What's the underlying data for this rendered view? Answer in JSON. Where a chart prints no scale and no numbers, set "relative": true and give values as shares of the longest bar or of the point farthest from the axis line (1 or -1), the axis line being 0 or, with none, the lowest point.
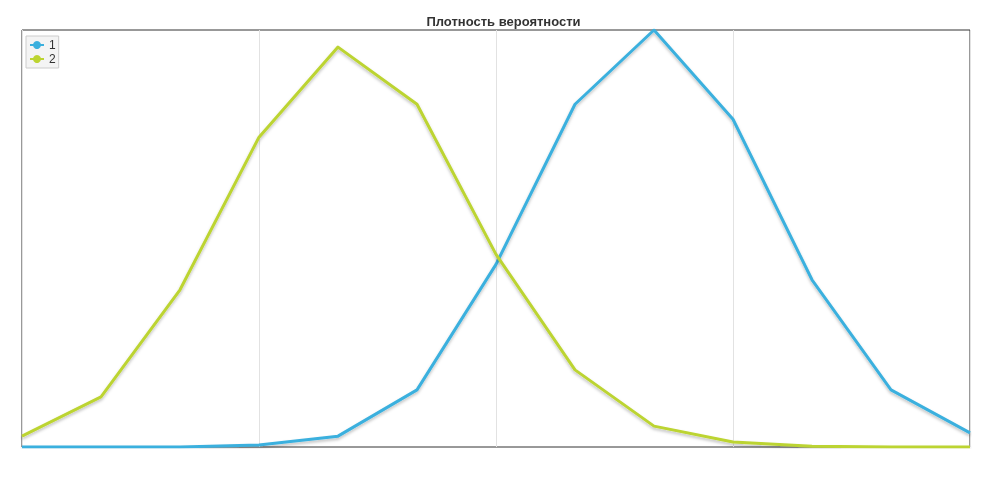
{
  "chart_data": {
    "type": "line",
    "title": "Плотность вероятности",
    "relative": true,
    "categories": [
      null,
      null,
      null,
      null,
      null,
      null,
      null,
      null,
      null,
      null,
      null,
      null,
      null
    ],
    "series": [
      {
        "name": "1",
        "color": "#3bb0de",
        "values": [
          0,
          0,
          0,
          0.005,
          0.026,
          0.137,
          0.438,
          0.822,
          1,
          0.786,
          0.401,
          0.137,
          0.034
        ]
      },
      {
        "name": "2",
        "color": "#bcd431",
        "values": [
          0.026,
          0.12,
          0.377,
          0.743,
          0.959,
          0.822,
          0.462,
          0.185,
          0.05,
          0.012,
          0.002,
          0,
          0
        ]
      }
    ],
    "grid": "x",
    "legend": "top left"
  }
}
